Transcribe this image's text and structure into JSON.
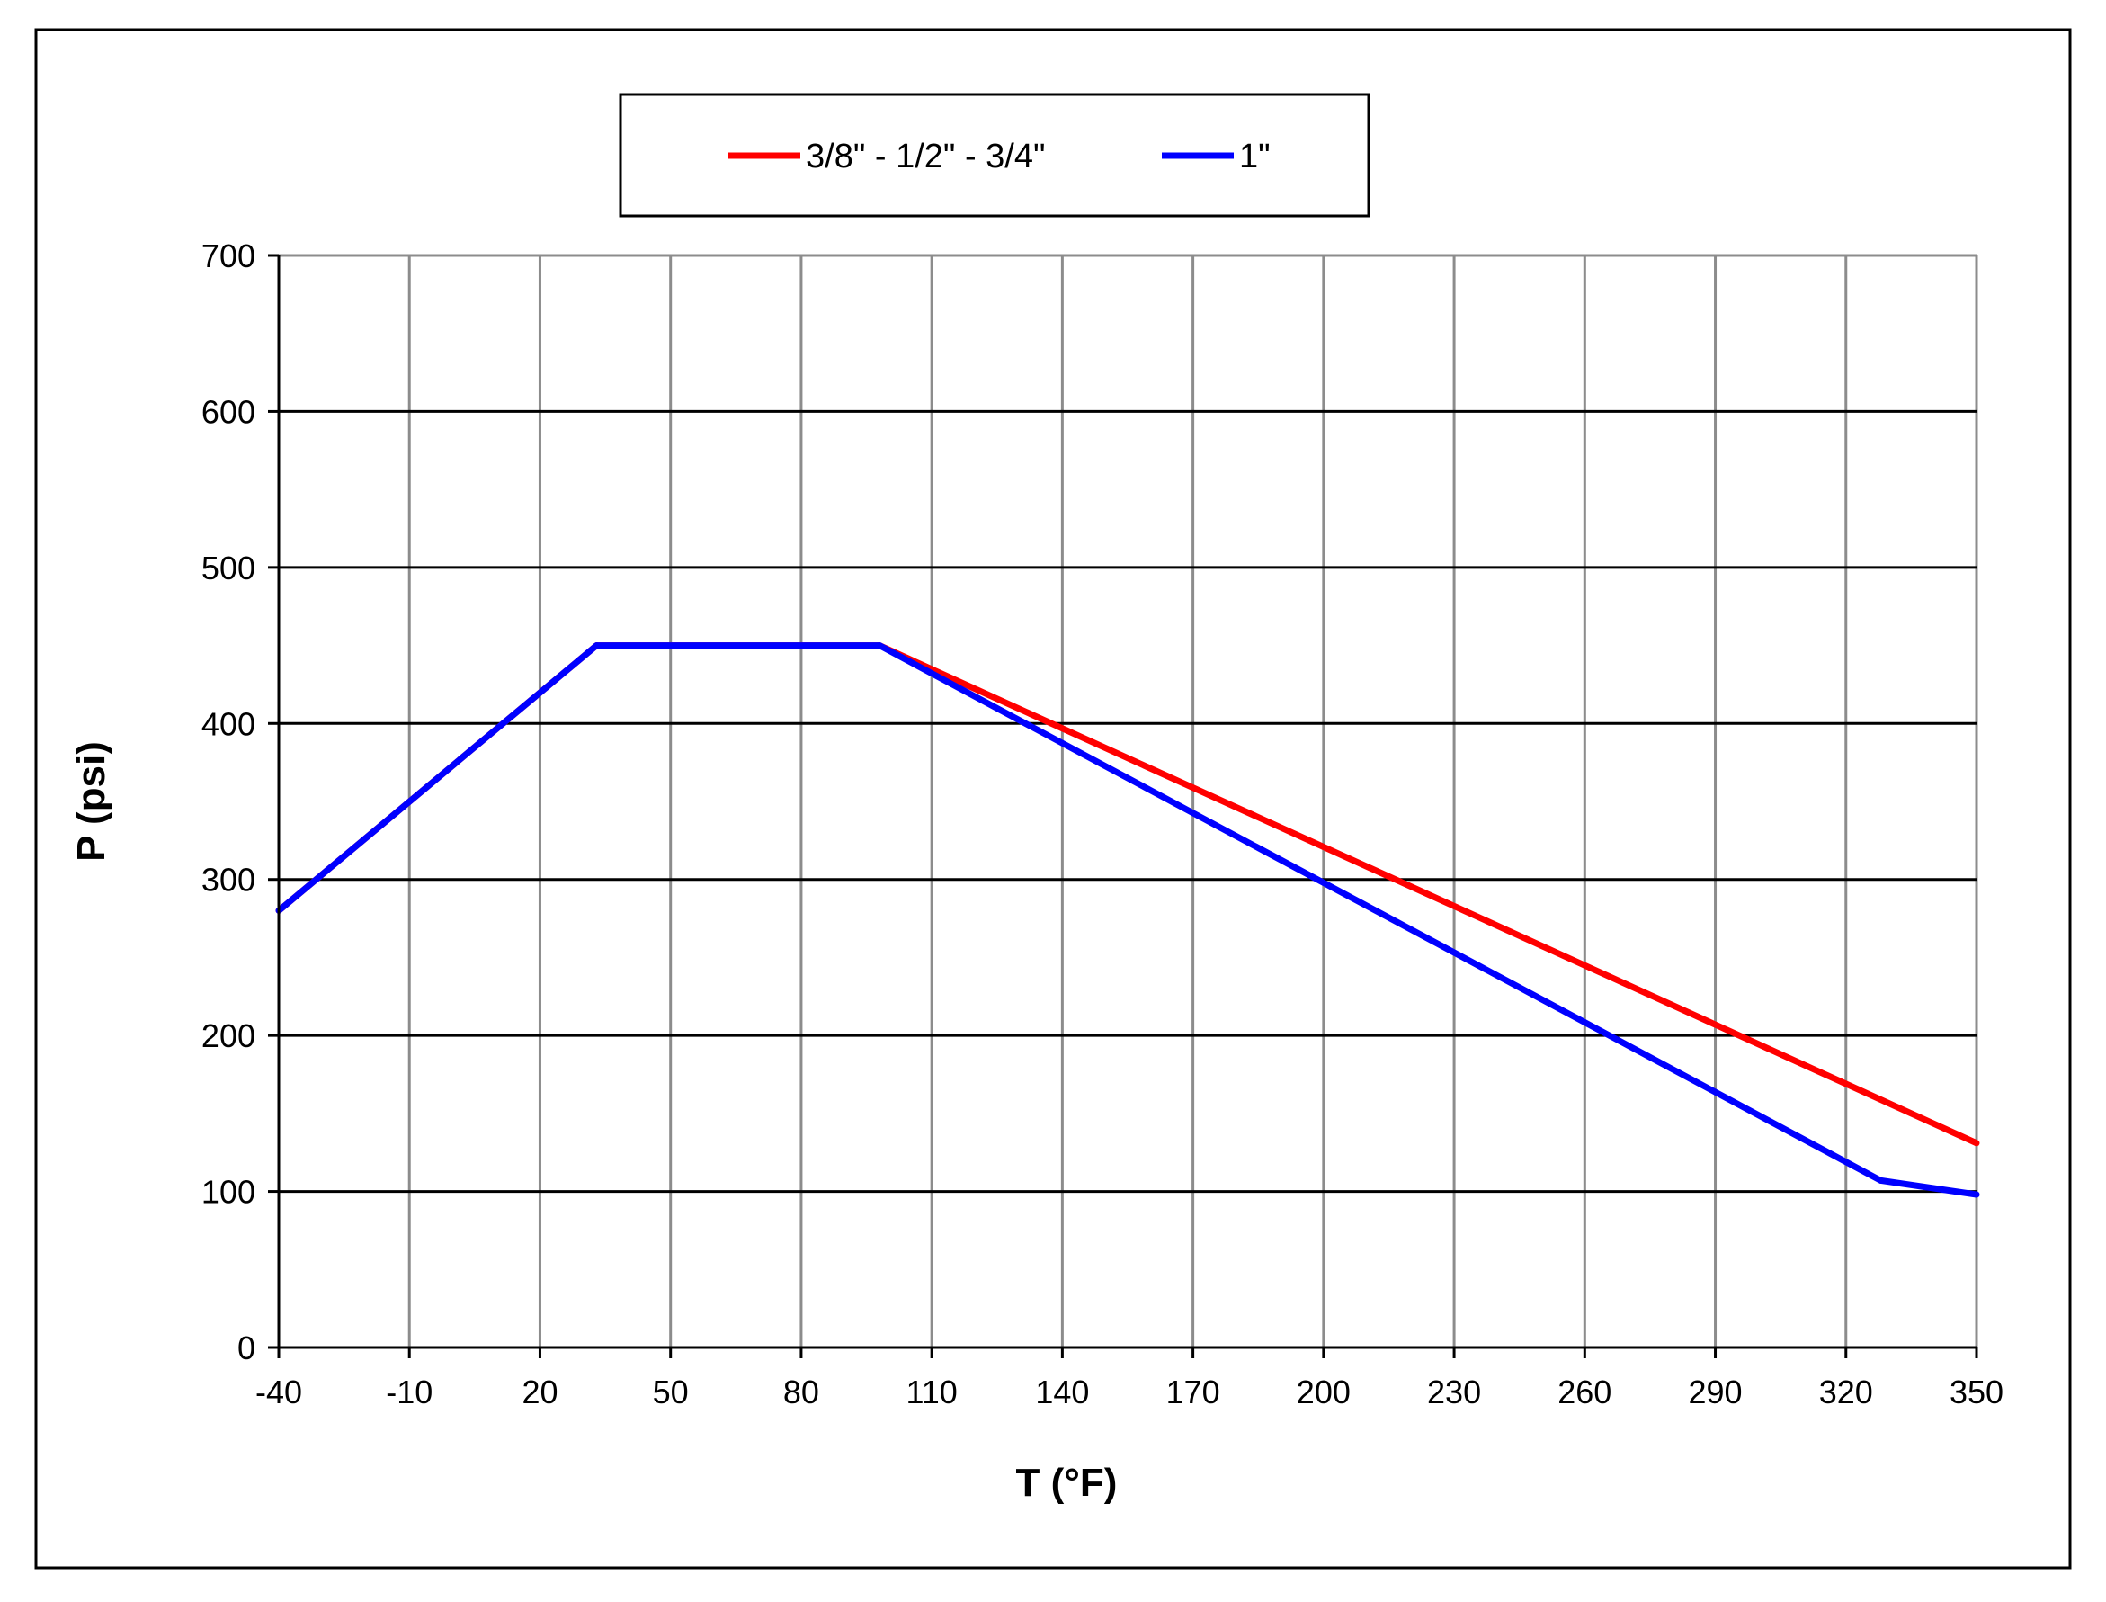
{
  "chart_data": {
    "type": "line",
    "title": "",
    "xlabel": "T (°F)",
    "ylabel": "P (psi)",
    "xlim": [
      -40,
      350
    ],
    "ylim": [
      0,
      700
    ],
    "x_ticks": [
      "-40",
      "-10",
      "20",
      "50",
      "80",
      "110",
      "140",
      "170",
      "200",
      "230",
      "260",
      "290",
      "320",
      "350"
    ],
    "y_ticks": [
      "0",
      "100",
      "200",
      "300",
      "400",
      "500",
      "600",
      "700"
    ],
    "grid": true,
    "legend": "top-center",
    "series": [
      {
        "name": "3/8\" - 1/2\" - 3/4\"",
        "color": "#ff0000",
        "points": [
          [
            -40,
            280
          ],
          [
            33,
            450
          ],
          [
            98,
            450
          ],
          [
            350,
            131
          ]
        ]
      },
      {
        "name": "1\"",
        "color": "#0000ff",
        "points": [
          [
            -40,
            280
          ],
          [
            33,
            450
          ],
          [
            98,
            450
          ],
          [
            328,
            107
          ],
          [
            350,
            98
          ]
        ]
      }
    ]
  }
}
